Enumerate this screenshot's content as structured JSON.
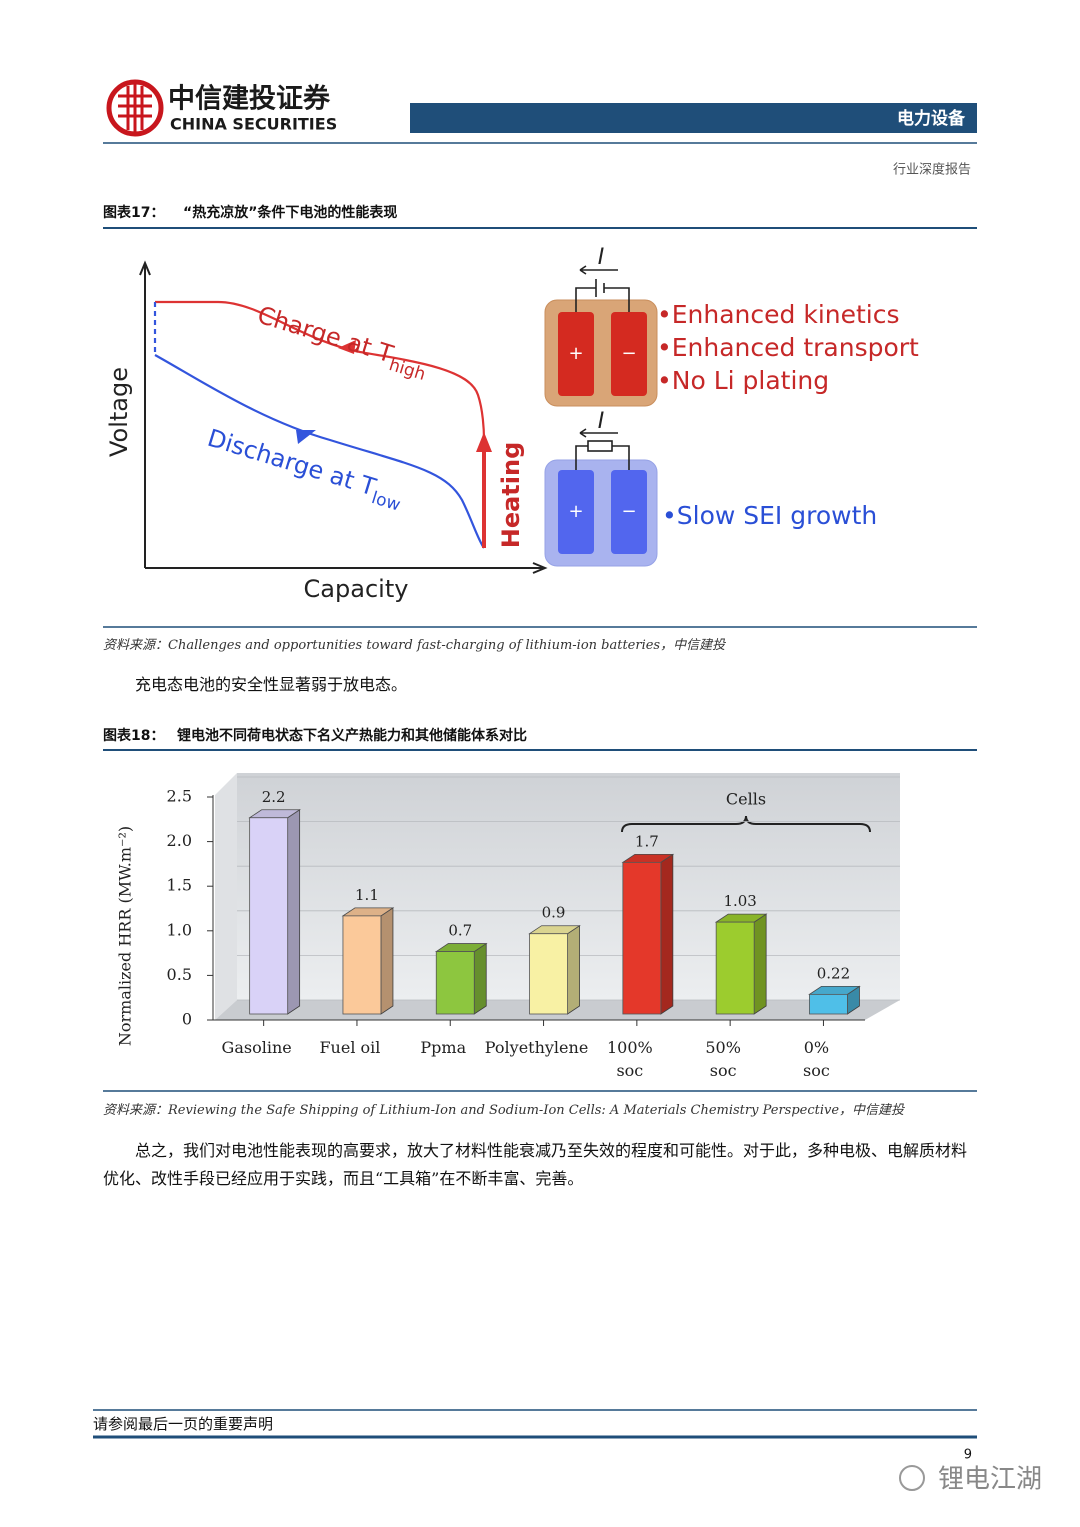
{
  "header": {
    "logo_cn": "中信建投证券",
    "logo_en": "CHINA SECURITIES",
    "sector": "电力设备",
    "report_type": "行业深度报告"
  },
  "figure17": {
    "label": "图表17：",
    "title": "“热充凉放”条件下电池的性能表现",
    "diagram": {
      "y_axis": "Voltage",
      "x_axis": "Capacity",
      "charge": "Charge at T",
      "charge_sub": "high",
      "discharge": "Discharge at T",
      "discharge_sub": "low",
      "heating": "Heating",
      "current": "I",
      "plus": "+",
      "minus": "−",
      "hot_benefits": [
        "Enhanced kinetics",
        "Enhanced transport",
        "No Li plating"
      ],
      "cold_benefits": [
        "Slow SEI growth"
      ],
      "bullet": "•"
    },
    "source": "资料来源：Challenges and opportunities toward fast-charging of lithium-ion batteries，中信建投"
  },
  "paragraph1": "充电态电池的安全性显著弱于放电态。",
  "figure18": {
    "label": "图表18：",
    "title": "锂电池不同荷电状态下名义产热能力和其他储能体系对比",
    "source": "资料来源：Reviewing the Safe Shipping of Lithium-Ion and Sodium-Ion Cells: A Materials Chemistry Perspective，中信建投"
  },
  "chart_data": {
    "type": "bar",
    "y_label": "Normalized HRR (MW.m⁻²)",
    "annotation": "Cells",
    "categories": [
      "Gasoline",
      "Fuel oil",
      "Ppma",
      "Polyethylene",
      "100%\nsoc",
      "50%\nsoc",
      "0%\nsoc"
    ],
    "values": [
      2.2,
      1.1,
      0.7,
      0.9,
      1.7,
      1.03,
      0.22
    ],
    "colors": [
      "#d9d2f7",
      "#fbc99a",
      "#8dc63f",
      "#f8f1a4",
      "#e4382a",
      "#9ccc2e",
      "#4fbfe8"
    ],
    "ylim": [
      0,
      2.5
    ],
    "yticks": [
      0,
      0.5,
      {
        "value": 1,
        "label": "1.0"
      },
      1.5,
      {
        "value": 2,
        "label": "2.0"
      },
      2.5
    ],
    "grid": true
  },
  "paragraph2": "总之，我们对电池性能表现的高要求，放大了材料性能衰减乃至失效的程度和可能性。对于此，多种电极、电解质材料优化、改性手段已经应用于实践，而且“工具箱”在不断丰富、完善。",
  "footer": {
    "disclaimer": "请参阅最后一页的重要声明",
    "page_number": 9,
    "watermark": "锂电江湖"
  }
}
